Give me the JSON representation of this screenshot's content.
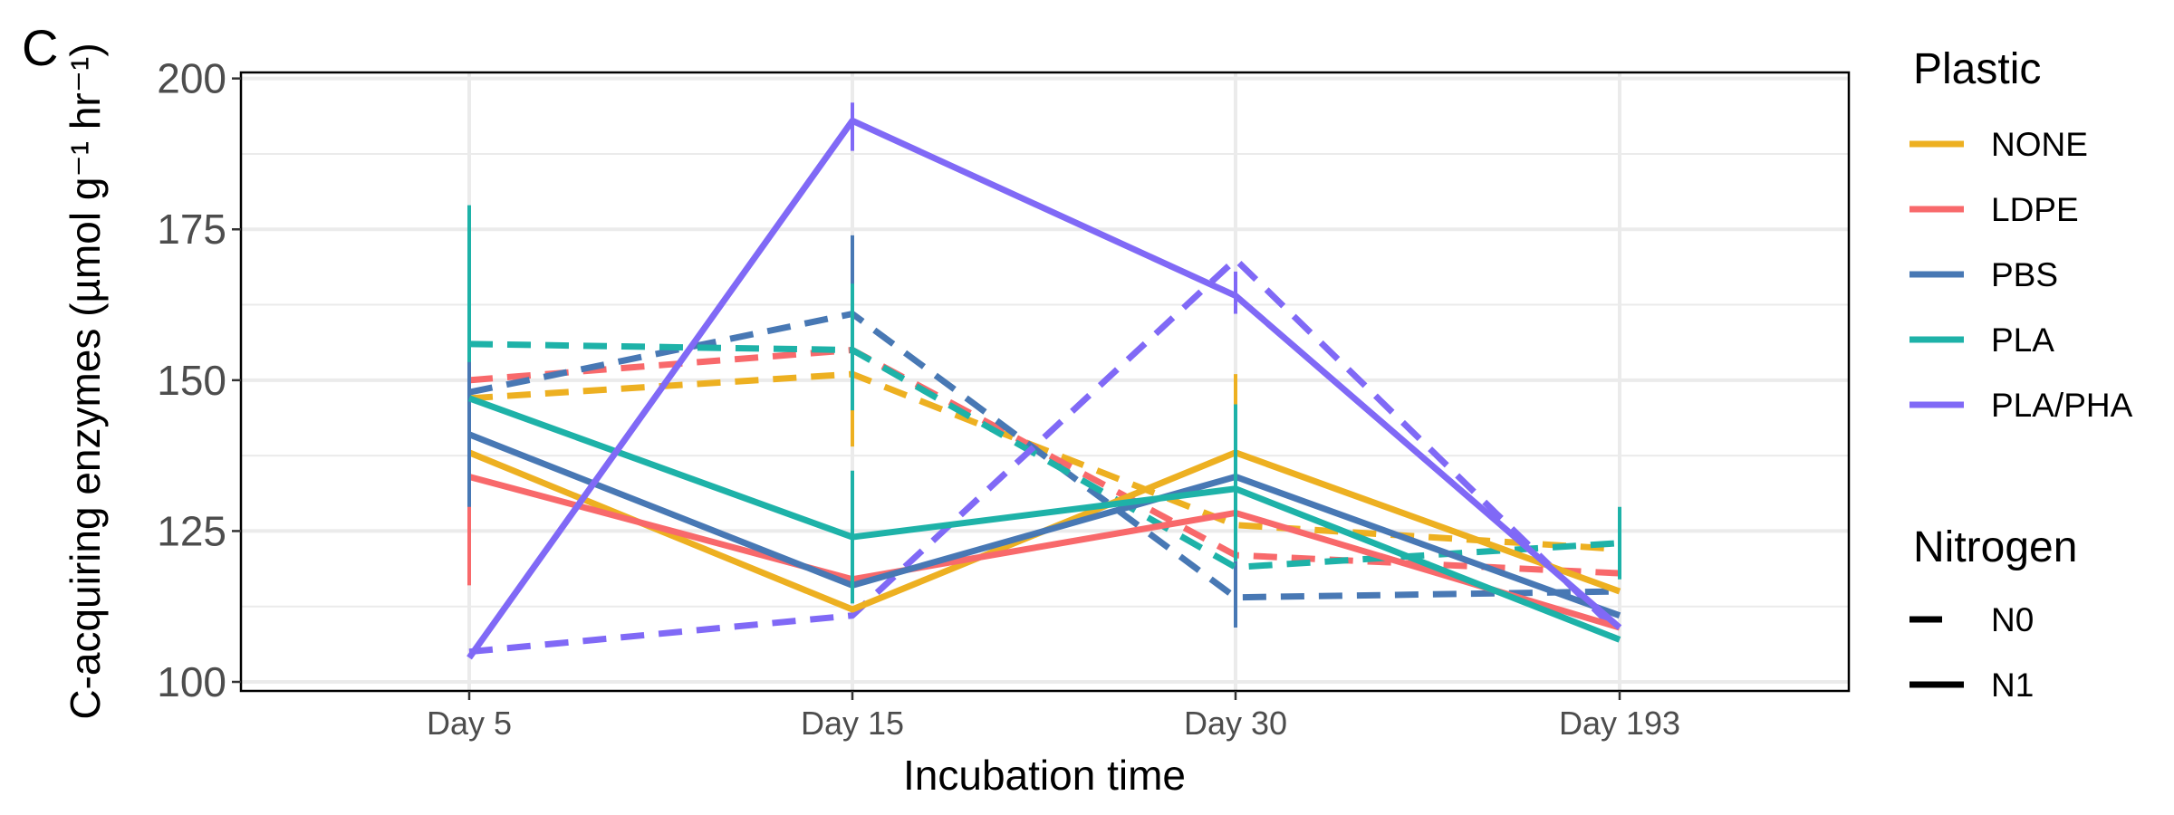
{
  "panel_label": "C",
  "chart_data": {
    "type": "line",
    "xlabel": "Incubation time",
    "ylabel": "C-acquiring enzymes (µmol g⁻¹ hr⁻¹)",
    "categories": [
      "Day 5",
      "Day 15",
      "Day 30",
      "Day 193"
    ],
    "ylim": [
      98.5,
      201
    ],
    "yticks": [
      "100",
      "125",
      "150",
      "175",
      "200"
    ],
    "grid": true,
    "legend": {
      "placement": "right",
      "color_title": "Plastic",
      "linetype_title": "Nitrogen",
      "linetypes": [
        {
          "name": "N0",
          "dash": "dashed"
        },
        {
          "name": "N1",
          "dash": "solid"
        }
      ]
    },
    "series": [
      {
        "plastic": "NONE",
        "nitrogen": "N0",
        "color": "#EDB021",
        "values": [
          147,
          151,
          126,
          122
        ],
        "errors": [
          [
            null,
            null
          ],
          [
            139,
            156
          ],
          [
            null,
            null
          ],
          [
            null,
            null
          ]
        ]
      },
      {
        "plastic": "LDPE",
        "nitrogen": "N0",
        "color": "#F8696B",
        "values": [
          150,
          155,
          121,
          118
        ],
        "errors": [
          [
            null,
            null
          ],
          [
            null,
            null
          ],
          [
            null,
            null
          ],
          [
            null,
            null
          ]
        ]
      },
      {
        "plastic": "PBS",
        "nitrogen": "N0",
        "color": "#4878B4",
        "values": [
          148,
          161,
          114,
          115
        ],
        "errors": [
          [
            null,
            null
          ],
          [
            147,
            174
          ],
          [
            109,
            120
          ],
          [
            null,
            null
          ]
        ]
      },
      {
        "plastic": "PLA",
        "nitrogen": "N0",
        "color": "#1EB2A8",
        "values": [
          156,
          155,
          119,
          123
        ],
        "errors": [
          [
            134,
            179
          ],
          [
            145,
            166
          ],
          [
            null,
            null
          ],
          [
            117,
            129
          ]
        ]
      },
      {
        "plastic": "PLA/PHA",
        "nitrogen": "N0",
        "color": "#8069F6",
        "values": [
          105,
          111,
          170,
          108
        ],
        "errors": [
          [
            null,
            null
          ],
          [
            null,
            null
          ],
          [
            null,
            null
          ],
          [
            null,
            null
          ]
        ]
      },
      {
        "plastic": "NONE",
        "nitrogen": "N1",
        "color": "#EDB021",
        "values": [
          138,
          112,
          138,
          115
        ],
        "errors": [
          [
            125,
            150
          ],
          [
            null,
            null
          ],
          [
            126,
            151
          ],
          [
            null,
            null
          ]
        ]
      },
      {
        "plastic": "LDPE",
        "nitrogen": "N1",
        "color": "#F8696B",
        "values": [
          134,
          117,
          128,
          109
        ],
        "errors": [
          [
            116,
            150
          ],
          [
            null,
            null
          ],
          [
            null,
            null
          ],
          [
            null,
            null
          ]
        ]
      },
      {
        "plastic": "PBS",
        "nitrogen": "N1",
        "color": "#4878B4",
        "values": [
          141,
          116,
          134,
          111
        ],
        "errors": [
          [
            129,
            153
          ],
          [
            null,
            null
          ],
          [
            null,
            null
          ],
          [
            null,
            null
          ]
        ]
      },
      {
        "plastic": "PLA",
        "nitrogen": "N1",
        "color": "#1EB2A8",
        "values": [
          147,
          124,
          132,
          107
        ],
        "errors": [
          [
            null,
            null
          ],
          [
            113,
            135
          ],
          [
            120,
            146
          ],
          [
            null,
            null
          ]
        ]
      },
      {
        "plastic": "PLA/PHA",
        "nitrogen": "N1",
        "color": "#8069F6",
        "values": [
          104,
          193,
          164,
          109
        ],
        "errors": [
          [
            null,
            null
          ],
          [
            188,
            196
          ],
          [
            161,
            168
          ],
          [
            null,
            null
          ]
        ]
      }
    ]
  },
  "legend_entries": [
    {
      "name": "NONE",
      "color": "#EDB021"
    },
    {
      "name": "LDPE",
      "color": "#F8696B"
    },
    {
      "name": "PBS",
      "color": "#4878B4"
    },
    {
      "name": "PLA",
      "color": "#1EB2A8"
    },
    {
      "name": "PLA/PHA",
      "color": "#8069F6"
    }
  ]
}
